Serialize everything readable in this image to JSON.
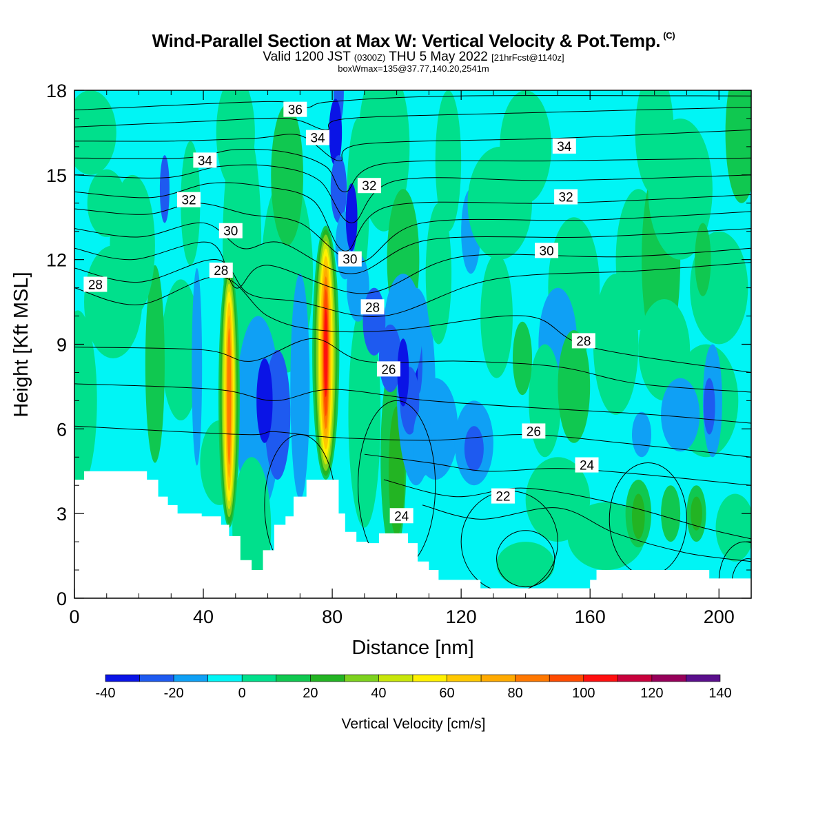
{
  "header": {
    "title": "Wind-Parallel Section at Max W: Vertical Velocity & Pot.Temp.",
    "title_tag": "(C)",
    "valid_a": "Valid 1200 JST",
    "valid_b": "(0300Z)",
    "valid_c": "THU 5 May 2022",
    "valid_d": "[21hrFcst@1140z]",
    "box_info": "boxWmax=135@37.77,140.20,2541m"
  },
  "chart_data": {
    "type": "heatmap",
    "xlabel": "Distance [nm]",
    "ylabel": "Height [Kft MSL]",
    "xlim": [
      0,
      210
    ],
    "ylim": [
      0,
      18
    ],
    "xticks": [
      0,
      40,
      80,
      120,
      160,
      200
    ],
    "yticks": [
      0,
      3,
      6,
      9,
      12,
      15,
      18
    ],
    "colorbar": {
      "title": "Vertical Velocity [cm/s]",
      "bounds": [
        -40,
        -30,
        -20,
        -10,
        0,
        10,
        20,
        30,
        40,
        50,
        60,
        70,
        80,
        90,
        100,
        110,
        120,
        130,
        140
      ],
      "tick_labels": [
        "-40",
        "-20",
        "0",
        "20",
        "40",
        "60",
        "80",
        "100",
        "120",
        "140"
      ],
      "colors": [
        "#0a14e6",
        "#1e5af0",
        "#0fa0f5",
        "#00f5f5",
        "#00e08c",
        "#10c850",
        "#23b423",
        "#7dd21e",
        "#c8e60a",
        "#fff000",
        "#ffc800",
        "#ffaa00",
        "#ff7800",
        "#ff4b00",
        "#ff0f0f",
        "#c8003c",
        "#96005a",
        "#5a0f8c"
      ]
    },
    "theta_contour_labels": [
      {
        "value": "36",
        "x": 68.5,
        "y": 17.3
      },
      {
        "value": "34",
        "x": 40.5,
        "y": 15.5
      },
      {
        "value": "34",
        "x": 75.5,
        "y": 16.3
      },
      {
        "value": "34",
        "x": 152,
        "y": 16.0
      },
      {
        "value": "32",
        "x": 35.5,
        "y": 14.1
      },
      {
        "value": "32",
        "x": 91.5,
        "y": 14.6
      },
      {
        "value": "32",
        "x": 152.5,
        "y": 14.2
      },
      {
        "value": "30",
        "x": 48.5,
        "y": 13.0
      },
      {
        "value": "30",
        "x": 85.5,
        "y": 12.0
      },
      {
        "value": "30",
        "x": 146.5,
        "y": 12.3
      },
      {
        "value": "28",
        "x": 6.5,
        "y": 11.1
      },
      {
        "value": "28",
        "x": 45.5,
        "y": 11.6
      },
      {
        "value": "28",
        "x": 92.5,
        "y": 10.3
      },
      {
        "value": "28",
        "x": 158,
        "y": 9.1
      },
      {
        "value": "26",
        "x": 97.5,
        "y": 8.1
      },
      {
        "value": "26",
        "x": 142.5,
        "y": 5.9
      },
      {
        "value": "24",
        "x": 101.5,
        "y": 2.9
      },
      {
        "value": "24",
        "x": 159,
        "y": 4.7
      },
      {
        "value": "22",
        "x": 133,
        "y": 3.6
      }
    ],
    "terrain_profile": {
      "x": [
        0,
        3,
        3,
        22.5,
        22.5,
        26,
        26,
        29,
        29,
        32,
        32,
        39.5,
        39.5,
        45.5,
        45.5,
        48,
        48,
        51.5,
        51.5,
        55,
        55,
        58.5,
        58.5,
        62,
        62,
        65.5,
        65.5,
        68,
        68,
        72,
        72,
        75,
        75,
        82,
        82,
        84,
        84,
        87.5,
        87.5,
        91,
        91,
        94.5,
        94.5,
        103.5,
        103.5,
        106.5,
        106.5,
        110,
        110,
        113,
        113,
        116,
        116,
        126,
        126,
        160,
        160,
        162,
        162,
        197,
        197,
        210
      ],
      "y": [
        4.2,
        4.2,
        4.5,
        4.5,
        4.2,
        4.2,
        3.6,
        3.6,
        3.3,
        3.3,
        3.0,
        3.0,
        2.9,
        2.9,
        2.6,
        2.6,
        2.2,
        2.2,
        1.35,
        1.35,
        1.0,
        1.0,
        1.7,
        1.7,
        2.6,
        2.6,
        2.9,
        2.9,
        3.6,
        3.6,
        4.2,
        4.2,
        4.2,
        4.2,
        3.0,
        3.0,
        2.35,
        2.35,
        2.0,
        2.0,
        1.95,
        1.95,
        2.3,
        2.3,
        1.95,
        1.95,
        1.3,
        1.3,
        1.0,
        1.0,
        0.65,
        0.65,
        0.65,
        0.65,
        0.35,
        0.35,
        0.65,
        0.65,
        1.0,
        1.0,
        0.7,
        0.7
      ]
    }
  }
}
